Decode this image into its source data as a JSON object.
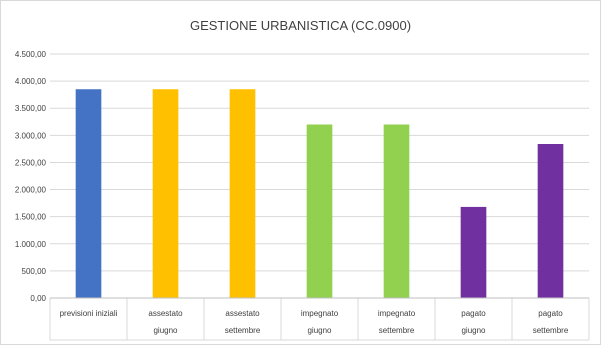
{
  "chart_data": {
    "type": "bar",
    "title": "GESTIONE URBANISTICA (CC.0900)",
    "categories": [
      [
        "previsioni iniziali"
      ],
      [
        "assestato",
        "giugno"
      ],
      [
        "assestato",
        "settembre"
      ],
      [
        "impegnato",
        "giugno"
      ],
      [
        "impegnato",
        "settembre"
      ],
      [
        "pagato",
        "giugno"
      ],
      [
        "pagato",
        "settembre"
      ]
    ],
    "values": [
      3850,
      3850,
      3850,
      3200,
      3200,
      1680,
      2840
    ],
    "colors": [
      "#4472c4",
      "#ffc000",
      "#ffc000",
      "#92d050",
      "#92d050",
      "#7030a0",
      "#7030a0"
    ],
    "yticks": [
      0,
      500,
      1000,
      1500,
      2000,
      2500,
      3000,
      3500,
      4000,
      4500
    ],
    "ytick_labels": [
      "0,00",
      "500,00",
      "1.000,00",
      "1.500,00",
      "2.000,00",
      "2.500,00",
      "3.000,00",
      "3.500,00",
      "4.000,00",
      "4.500,00"
    ],
    "ylim": [
      0,
      4500
    ],
    "grid": true,
    "legend": "none"
  }
}
